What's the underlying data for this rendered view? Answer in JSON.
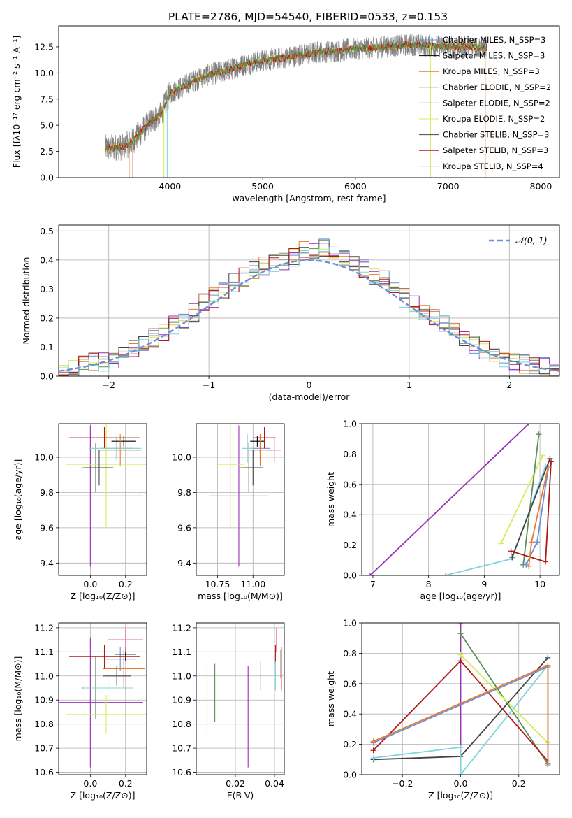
{
  "figure": {
    "title": "PLATE=2786, MJD=54540, FIBERID=0533, z=0.153",
    "colors": {
      "chabrier_miles": "#6b8fd6",
      "salpeter_miles": "#000000",
      "kroupa_miles": "#e87a2a",
      "chabrier_elodie": "#5a8f5a",
      "salpeter_elodie": "#9a2fb8",
      "kroupa_elodie": "#d4ec5a",
      "chabrier_stelib": "#444444",
      "salpeter_stelib": "#b01818",
      "kroupa_stelib": "#7fd4dc",
      "extra_pink": "#ee6f9a",
      "data": "#808080",
      "grid": "#b0b0b0"
    }
  },
  "chart_data": [
    {
      "id": "spectrum",
      "type": "line",
      "xlabel": "wavelength [Angstrom, rest frame]",
      "ylabel": "Flux [fλ10⁻¹⁷ erg cm⁻² s⁻¹ A⁻¹]",
      "xlim": [
        2800,
        8200
      ],
      "ylim": [
        0,
        14.5
      ],
      "xticks": [
        "4000",
        "5000",
        "6000",
        "7000",
        "8000"
      ],
      "yticks": [
        "0.0",
        "2.5",
        "5.0",
        "7.5",
        "10.0",
        "12.5"
      ],
      "grid": false,
      "legend_position": "top-right",
      "legend": [
        "Chabrier MILES, N_SSP=3",
        "Salpeter MILES, N_SSP=3",
        "Kroupa MILES, N_SSP=3",
        "Chabrier ELODIE, N_SSP=2",
        "Salpeter ELODIE, N_SSP=2",
        "Kroupa ELODIE, N_SSP=2",
        "Chabrier STELIB, N_SSP=3",
        "Salpeter STELIB, N_SSP=3",
        "Kroupa STELIB, N_SSP=4"
      ],
      "continuum": {
        "x": [
          3300,
          3400,
          3500,
          3600,
          3700,
          3800,
          3900,
          4000,
          4200,
          4400,
          4600,
          4800,
          5000,
          5200,
          5400,
          5600,
          5800,
          6000,
          6200,
          6400,
          6600,
          6800,
          7000,
          7200,
          7400
        ],
        "y": [
          2.8,
          2.9,
          2.9,
          3.5,
          4.5,
          5.4,
          6.0,
          8.0,
          9.0,
          9.8,
          10.2,
          10.8,
          11.2,
          11.4,
          11.7,
          12.0,
          12.1,
          12.3,
          12.4,
          12.6,
          12.7,
          12.6,
          12.5,
          12.5,
          12.4
        ]
      }
    },
    {
      "id": "residuals",
      "type": "line",
      "xlabel": "(data-model)/error",
      "ylabel": "Normed distribution",
      "xlim": [
        -2.5,
        2.5
      ],
      "ylim": [
        0,
        0.52
      ],
      "xticks": [
        "−2",
        "−1",
        "0",
        "1",
        "2"
      ],
      "yticks": [
        "0.0",
        "0.1",
        "0.2",
        "0.3",
        "0.4",
        "0.5"
      ],
      "grid": true,
      "legend": [
        "𝒩(0, 1)"
      ],
      "legend_position": "top-right",
      "bin_centers": [
        -2.45,
        -2.35,
        -2.25,
        -2.15,
        -2.05,
        -1.95,
        -1.85,
        -1.75,
        -1.65,
        -1.55,
        -1.45,
        -1.35,
        -1.25,
        -1.15,
        -1.05,
        -0.95,
        -0.85,
        -0.75,
        -0.65,
        -0.55,
        -0.45,
        -0.35,
        -0.25,
        -0.15,
        -0.05,
        0.05,
        0.15,
        0.25,
        0.35,
        0.45,
        0.55,
        0.65,
        0.75,
        0.85,
        0.95,
        1.05,
        1.15,
        1.25,
        1.35,
        1.45,
        1.55,
        1.65,
        1.75,
        1.85,
        1.95,
        2.05,
        2.15,
        2.25,
        2.35,
        2.45
      ],
      "base_histogram": [
        0.02,
        0.025,
        0.035,
        0.045,
        0.05,
        0.06,
        0.08,
        0.1,
        0.12,
        0.13,
        0.15,
        0.18,
        0.2,
        0.22,
        0.25,
        0.27,
        0.29,
        0.32,
        0.34,
        0.36,
        0.38,
        0.39,
        0.4,
        0.41,
        0.43,
        0.44,
        0.44,
        0.43,
        0.41,
        0.39,
        0.37,
        0.35,
        0.33,
        0.3,
        0.27,
        0.25,
        0.22,
        0.2,
        0.18,
        0.15,
        0.13,
        0.11,
        0.09,
        0.08,
        0.06,
        0.05,
        0.04,
        0.035,
        0.03,
        0.025
      ],
      "gaussian": {
        "mean": 0,
        "sigma": 1,
        "peak": 0.399
      }
    },
    {
      "id": "age_vs_Z",
      "type": "scatter",
      "xlabel": "Z [log₁₀(Z/Z⊙)]",
      "ylabel": "age  [log₁₀(age/yr)]",
      "xlim": [
        -0.18,
        0.32
      ],
      "ylim": [
        9.33,
        10.19
      ],
      "xticks": [
        {
          "v": 0.0,
          "t": "0.0"
        },
        {
          "v": 0.2,
          "t": "0.2"
        }
      ],
      "yticks": [
        {
          "v": 9.4,
          "t": "9.4"
        },
        {
          "v": 9.6,
          "t": "9.6"
        },
        {
          "v": 9.8,
          "t": "9.8"
        },
        {
          "v": 10.0,
          "t": "10.0"
        }
      ],
      "grid": true,
      "points": [
        {
          "c": "chabrier_miles",
          "x": 0.15,
          "xerr": 0.09,
          "y": 10.05,
          "yerr": 0.06
        },
        {
          "c": "salpeter_miles",
          "x": 0.19,
          "xerr": 0.07,
          "y": 10.09,
          "yerr": 0.03
        },
        {
          "c": "kroupa_miles",
          "x": 0.17,
          "xerr": 0.12,
          "y": 10.04,
          "yerr": 0.09
        },
        {
          "c": "chabrier_elodie",
          "x": 0.03,
          "xerr": 0.08,
          "y": 9.94,
          "yerr": 0.14
        },
        {
          "c": "salpeter_elodie",
          "x": 0.0,
          "xerr": 0.3,
          "y": 9.78,
          "yerr": 0.4
        },
        {
          "c": "kroupa_elodie",
          "x": 0.09,
          "xerr": 0.23,
          "y": 9.96,
          "yerr": 0.36
        },
        {
          "c": "chabrier_stelib",
          "x": 0.05,
          "xerr": 0.08,
          "y": 9.94,
          "yerr": 0.1
        },
        {
          "c": "salpeter_stelib",
          "x": 0.08,
          "xerr": 0.2,
          "y": 10.11,
          "yerr": 0.06
        },
        {
          "c": "kroupa_stelib",
          "x": 0.14,
          "xerr": 0.15,
          "y": 10.05,
          "yerr": 0.08
        }
      ]
    },
    {
      "id": "age_vs_mass",
      "type": "scatter",
      "xlabel": "mass [log₁₀(M/M⊙)]",
      "ylabel": "",
      "xlim": [
        10.6,
        11.22
      ],
      "ylim": [
        9.33,
        10.19
      ],
      "xticks": [
        {
          "v": 10.75,
          "t": "10.75"
        },
        {
          "v": 11.0,
          "t": "11.00"
        }
      ],
      "yticks": [
        {
          "v": 9.4,
          "t": "9.4"
        },
        {
          "v": 9.6,
          "t": "9.6"
        },
        {
          "v": 9.8,
          "t": "9.8"
        },
        {
          "v": 10.0,
          "t": "10.0"
        }
      ],
      "grid": true,
      "points": [
        {
          "c": "chabrier_miles",
          "x": 11.05,
          "xerr": 0.07,
          "y": 10.05,
          "yerr": 0.06
        },
        {
          "c": "salpeter_miles",
          "x": 11.03,
          "xerr": 0.05,
          "y": 10.09,
          "yerr": 0.03
        },
        {
          "c": "kroupa_miles",
          "x": 11.05,
          "xerr": 0.08,
          "y": 10.04,
          "yerr": 0.09
        },
        {
          "c": "chabrier_elodie",
          "x": 10.97,
          "xerr": 0.06,
          "y": 9.94,
          "yerr": 0.14
        },
        {
          "c": "salpeter_elodie",
          "x": 10.9,
          "xerr": 0.21,
          "y": 9.78,
          "yerr": 0.4
        },
        {
          "c": "kroupa_elodie",
          "x": 10.84,
          "xerr": 0.1,
          "y": 9.96,
          "yerr": 0.36
        },
        {
          "c": "chabrier_stelib",
          "x": 11.0,
          "xerr": 0.07,
          "y": 9.94,
          "yerr": 0.1
        },
        {
          "c": "salpeter_stelib",
          "x": 11.08,
          "xerr": 0.08,
          "y": 10.11,
          "yerr": 0.06
        },
        {
          "c": "kroupa_stelib",
          "x": 10.96,
          "xerr": 0.04,
          "y": 10.05,
          "yerr": 0.08
        },
        {
          "c": "extra_pink",
          "x": 11.15,
          "xerr": 0.05,
          "y": 10.04,
          "yerr": 0.07
        }
      ]
    },
    {
      "id": "weight_vs_age",
      "type": "line",
      "xlabel": "age  [log₁₀(age/yr)]",
      "ylabel": "mass weight",
      "xlim": [
        6.8,
        10.35
      ],
      "ylim": [
        0,
        1
      ],
      "xticks": [
        {
          "v": 7,
          "t": "7"
        },
        {
          "v": 8,
          "t": "8"
        },
        {
          "v": 9,
          "t": "9"
        },
        {
          "v": 10,
          "t": "10"
        }
      ],
      "yticks": [
        {
          "v": 0,
          "t": "0.0"
        },
        {
          "v": 0.2,
          "t": "0.2"
        },
        {
          "v": 0.4,
          "t": "0.4"
        },
        {
          "v": 0.6,
          "t": "0.6"
        },
        {
          "v": 0.8,
          "t": "0.8"
        },
        {
          "v": 1.0,
          "t": "1.0"
        }
      ],
      "grid": true,
      "series": [
        {
          "c": "salpeter_elodie",
          "x": [
            6.95,
            9.8
          ],
          "y": [
            0.0,
            1.0
          ]
        },
        {
          "c": "kroupa_stelib",
          "x": [
            8.3,
            9.5,
            10.1
          ],
          "y": [
            0.0,
            0.11,
            0.72
          ]
        },
        {
          "c": "kroupa_elodie",
          "x": [
            9.3,
            10.05
          ],
          "y": [
            0.21,
            0.79
          ]
        },
        {
          "c": "chabrier_elodie",
          "x": [
            9.7,
            9.98
          ],
          "y": [
            0.07,
            0.93
          ]
        },
        {
          "c": "chabrier_stelib",
          "x": [
            9.5,
            10.18
          ],
          "y": [
            0.12,
            0.77
          ]
        },
        {
          "c": "salpeter_stelib",
          "x": [
            9.48,
            10.1,
            10.2
          ],
          "y": [
            0.16,
            0.09,
            0.75
          ]
        },
        {
          "c": "chabrier_miles",
          "x": [
            9.75,
            9.95,
            10.15
          ],
          "y": [
            0.07,
            0.22,
            0.71
          ]
        },
        {
          "c": "kroupa_miles",
          "x": [
            9.8,
            9.85,
            10.15
          ],
          "y": [
            0.06,
            0.22,
            0.72
          ]
        }
      ]
    },
    {
      "id": "mass_vs_Z",
      "type": "scatter",
      "xlabel": "Z [log₁₀(Z/Z⊙)]",
      "ylabel": "mass [log₁₀(M/M⊙)]",
      "xlim": [
        -0.18,
        0.32
      ],
      "ylim": [
        10.59,
        11.22
      ],
      "xticks": [
        {
          "v": 0.0,
          "t": "0.0"
        },
        {
          "v": 0.2,
          "t": "0.2"
        }
      ],
      "yticks": [
        {
          "v": 10.6,
          "t": "10.6"
        },
        {
          "v": 10.7,
          "t": "10.7"
        },
        {
          "v": 10.8,
          "t": "10.8"
        },
        {
          "v": 10.9,
          "t": "10.9"
        },
        {
          "v": 11.0,
          "t": "11.0"
        },
        {
          "v": 11.1,
          "t": "11.1"
        },
        {
          "v": 11.2,
          "t": "11.2"
        }
      ],
      "grid": true,
      "points": [
        {
          "c": "chabrier_miles",
          "x": 0.17,
          "xerr": 0.09,
          "y": 11.07,
          "yerr": 0.05
        },
        {
          "c": "salpeter_miles",
          "x": 0.2,
          "xerr": 0.06,
          "y": 11.09,
          "yerr": 0.03
        },
        {
          "c": "kroupa_miles",
          "x": 0.19,
          "xerr": 0.12,
          "y": 11.03,
          "yerr": 0.08
        },
        {
          "c": "chabrier_elodie",
          "x": 0.03,
          "xerr": 0.08,
          "y": 10.95,
          "yerr": 0.13
        },
        {
          "c": "salpeter_elodie",
          "x": 0.0,
          "xerr": 0.3,
          "y": 10.89,
          "yerr": 0.27
        },
        {
          "c": "kroupa_elodie",
          "x": 0.09,
          "xerr": 0.23,
          "y": 10.84,
          "yerr": 0.08
        },
        {
          "c": "chabrier_stelib",
          "x": 0.15,
          "xerr": 0.08,
          "y": 11.0,
          "yerr": 0.04
        },
        {
          "c": "salpeter_stelib",
          "x": 0.08,
          "xerr": 0.2,
          "y": 11.08,
          "yerr": 0.05
        },
        {
          "c": "kroupa_stelib",
          "x": 0.1,
          "xerr": 0.14,
          "y": 10.95,
          "yerr": 0.06
        },
        {
          "c": "extra_pink",
          "x": 0.2,
          "xerr": 0.1,
          "y": 11.15,
          "yerr": 0.05
        }
      ]
    },
    {
      "id": "mass_vs_ebv",
      "type": "scatter",
      "xlabel": "E(B-V)",
      "ylabel": "",
      "xlim": [
        0.0,
        0.045
      ],
      "ylim": [
        10.59,
        11.22
      ],
      "xticks": [
        {
          "v": 0.02,
          "t": "0.02"
        },
        {
          "v": 0.04,
          "t": "0.04"
        }
      ],
      "yticks": [
        {
          "v": 10.6,
          "t": "10.6"
        },
        {
          "v": 10.7,
          "t": "10.7"
        },
        {
          "v": 10.8,
          "t": "10.8"
        },
        {
          "v": 10.9,
          "t": "10.9"
        },
        {
          "v": 11.0,
          "t": "11.0"
        },
        {
          "v": 11.1,
          "t": "11.1"
        },
        {
          "v": 11.2,
          "t": "11.2"
        }
      ],
      "grid": true,
      "points": [
        {
          "c": "kroupa_elodie",
          "x": 0.0055,
          "y": 10.9,
          "yerr": 0.14
        },
        {
          "c": "chabrier_elodie",
          "x": 0.0095,
          "y": 10.93,
          "yerr": 0.12
        },
        {
          "c": "salpeter_elodie",
          "x": 0.0265,
          "y": 10.83,
          "yerr": 0.21
        },
        {
          "c": "chabrier_stelib",
          "x": 0.033,
          "y": 11.0,
          "yerr": 0.06
        },
        {
          "c": "salpeter_stelib",
          "x": 0.0405,
          "y": 11.09,
          "yerr": 0.04
        },
        {
          "c": "kroupa_stelib",
          "x": 0.0405,
          "y": 11.0,
          "yerr": 0.06
        },
        {
          "c": "extra_pink",
          "x": 0.041,
          "y": 11.15,
          "yerr": 0.05
        },
        {
          "c": "chabrier_miles",
          "x": 0.0432,
          "y": 11.05,
          "yerr": 0.06
        },
        {
          "c": "kroupa_miles",
          "x": 0.0436,
          "y": 11.03,
          "yerr": 0.09
        }
      ]
    },
    {
      "id": "weight_vs_Z",
      "type": "line",
      "xlabel": "Z [log₁₀(Z/Z⊙)]",
      "ylabel": "mass weight",
      "xlim": [
        -0.34,
        0.34
      ],
      "ylim": [
        0,
        1
      ],
      "xticks": [
        {
          "v": -0.2,
          "t": "−0.2"
        },
        {
          "v": 0.0,
          "t": "0.0"
        },
        {
          "v": 0.2,
          "t": "0.2"
        }
      ],
      "yticks": [
        {
          "v": 0,
          "t": "0.0"
        },
        {
          "v": 0.2,
          "t": "0.2"
        },
        {
          "v": 0.4,
          "t": "0.4"
        },
        {
          "v": 0.6,
          "t": "0.6"
        },
        {
          "v": 0.8,
          "t": "0.8"
        },
        {
          "v": 1.0,
          "t": "1.0"
        }
      ],
      "grid": true,
      "series": [
        {
          "c": "salpeter_elodie",
          "x": [
            0.0,
            0.0
          ],
          "y": [
            0.0,
            1.0
          ]
        },
        {
          "c": "chabrier_elodie",
          "x": [
            0.0,
            0.3
          ],
          "y": [
            0.93,
            0.07
          ]
        },
        {
          "c": "kroupa_elodie",
          "x": [
            0.0,
            0.3
          ],
          "y": [
            0.79,
            0.21
          ]
        },
        {
          "c": "salpeter_stelib",
          "x": [
            -0.3,
            0.0,
            0.3
          ],
          "y": [
            0.16,
            0.75,
            0.09
          ]
        },
        {
          "c": "chabrier_stelib",
          "x": [
            -0.3,
            0.0,
            0.3
          ],
          "y": [
            0.1,
            0.12,
            0.77
          ]
        },
        {
          "c": "kroupa_stelib",
          "x": [
            -0.3,
            0.0,
            0.0,
            0.3
          ],
          "y": [
            0.11,
            0.18,
            0.0,
            0.72
          ]
        },
        {
          "c": "chabrier_miles",
          "x": [
            -0.3,
            0.3,
            0.3
          ],
          "y": [
            0.21,
            0.71,
            0.07
          ]
        },
        {
          "c": "kroupa_miles",
          "x": [
            -0.3,
            0.3,
            0.3
          ],
          "y": [
            0.22,
            0.72,
            0.06
          ]
        }
      ]
    }
  ]
}
